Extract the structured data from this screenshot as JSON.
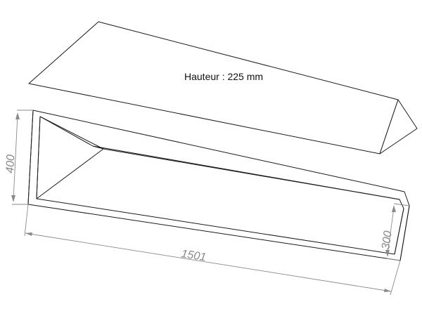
{
  "annotation": {
    "height_note": "Hauteur : 225 mm"
  },
  "dimensions": {
    "length": "1501",
    "left_height": "400",
    "right_height": "300"
  },
  "colors": {
    "outline": "#1a1a1a",
    "dimension": "#8a8a8a",
    "background": "#ffffff"
  }
}
